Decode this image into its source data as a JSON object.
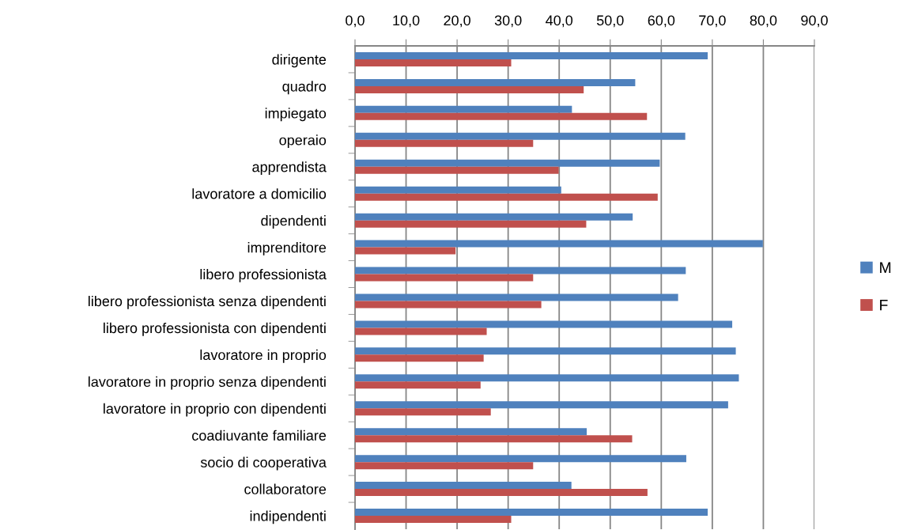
{
  "chart_data": {
    "type": "bar",
    "orientation": "horizontal",
    "categories": [
      "dirigente",
      "quadro",
      "impiegato",
      "operaio",
      "apprendista",
      "lavoratore a domicilio",
      "dipendenti",
      "imprenditore",
      "libero professionista",
      "libero professionista senza dipendenti",
      "libero professionista con dipendenti",
      "lavoratore in proprio",
      "lavoratore in proprio senza dipendenti",
      "lavoratore in proprio con dipendenti",
      "coadiuvante familiare",
      "socio di cooperativa",
      "collaboratore",
      "indipendenti"
    ],
    "series": [
      {
        "name": "M",
        "color": "#4f81bd",
        "values": [
          69.1,
          54.9,
          42.5,
          64.7,
          59.7,
          40.4,
          54.4,
          79.9,
          64.8,
          63.3,
          73.9,
          74.6,
          75.2,
          73.1,
          45.4,
          64.9,
          42.4,
          69.1
        ]
      },
      {
        "name": "F",
        "color": "#c0504d",
        "values": [
          30.6,
          44.8,
          57.2,
          34.9,
          39.9,
          59.3,
          45.3,
          19.7,
          34.9,
          36.5,
          25.8,
          25.2,
          24.6,
          26.6,
          54.3,
          34.9,
          57.3,
          30.6
        ]
      }
    ],
    "xlim": [
      0,
      90
    ],
    "xticks": [
      {
        "value": 0,
        "label": "0,0"
      },
      {
        "value": 10,
        "label": "10,0"
      },
      {
        "value": 20,
        "label": "20,0"
      },
      {
        "value": 30,
        "label": "30,0"
      },
      {
        "value": 40,
        "label": "40,0"
      },
      {
        "value": 50,
        "label": "50,0"
      },
      {
        "value": 60,
        "label": "60,0"
      },
      {
        "value": 70,
        "label": "70,0"
      },
      {
        "value": 80,
        "label": "80,0"
      },
      {
        "value": 90,
        "label": "90,0"
      }
    ],
    "grid": "x",
    "legend": "right"
  }
}
